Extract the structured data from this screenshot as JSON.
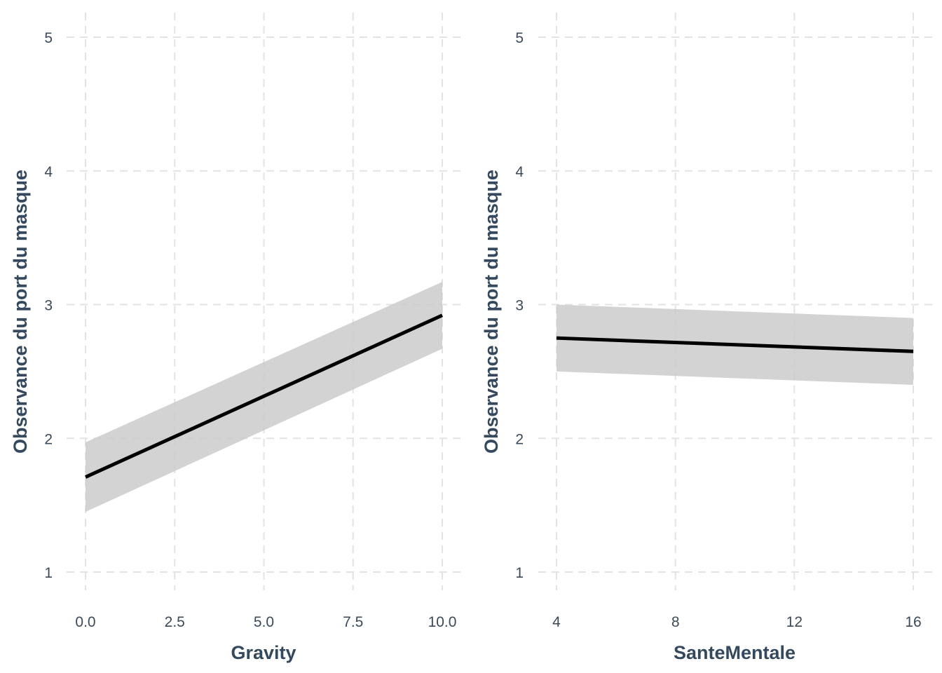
{
  "chart_data": [
    {
      "type": "line",
      "xlabel": "Gravity",
      "ylabel": "Observance du port du masque",
      "xlim": [
        0,
        10
      ],
      "ylim": [
        1,
        5
      ],
      "x_ticks": [
        0,
        2.5,
        5,
        7.5,
        10
      ],
      "x_tick_labels": [
        "0.0",
        "2.5",
        "5.0",
        "7.5",
        "10.0"
      ],
      "y_ticks": [
        1,
        2,
        3,
        4,
        5
      ],
      "y_tick_labels": [
        "1",
        "2",
        "3",
        "4",
        "5"
      ],
      "grid": true,
      "series": [
        {
          "x": [
            0,
            10
          ],
          "y": [
            1.71,
            2.92
          ],
          "lower": [
            1.45,
            2.67
          ],
          "upper": [
            1.97,
            3.17
          ]
        }
      ],
      "colors": {
        "line": "#000000",
        "band": "#c8c8c8"
      }
    },
    {
      "type": "line",
      "xlabel": "SanteMentale",
      "ylabel": "Observance du port du masque",
      "xlim": [
        4,
        16
      ],
      "ylim": [
        1,
        5
      ],
      "x_ticks": [
        4,
        8,
        12,
        16
      ],
      "x_tick_labels": [
        "4",
        "8",
        "12",
        "16"
      ],
      "y_ticks": [
        1,
        2,
        3,
        4,
        5
      ],
      "y_tick_labels": [
        "1",
        "2",
        "3",
        "4",
        "5"
      ],
      "grid": true,
      "series": [
        {
          "x": [
            4,
            16
          ],
          "y": [
            2.75,
            2.65
          ],
          "lower": [
            2.5,
            2.4
          ],
          "upper": [
            3.0,
            2.9
          ]
        }
      ],
      "colors": {
        "line": "#000000",
        "band": "#c8c8c8"
      }
    }
  ]
}
